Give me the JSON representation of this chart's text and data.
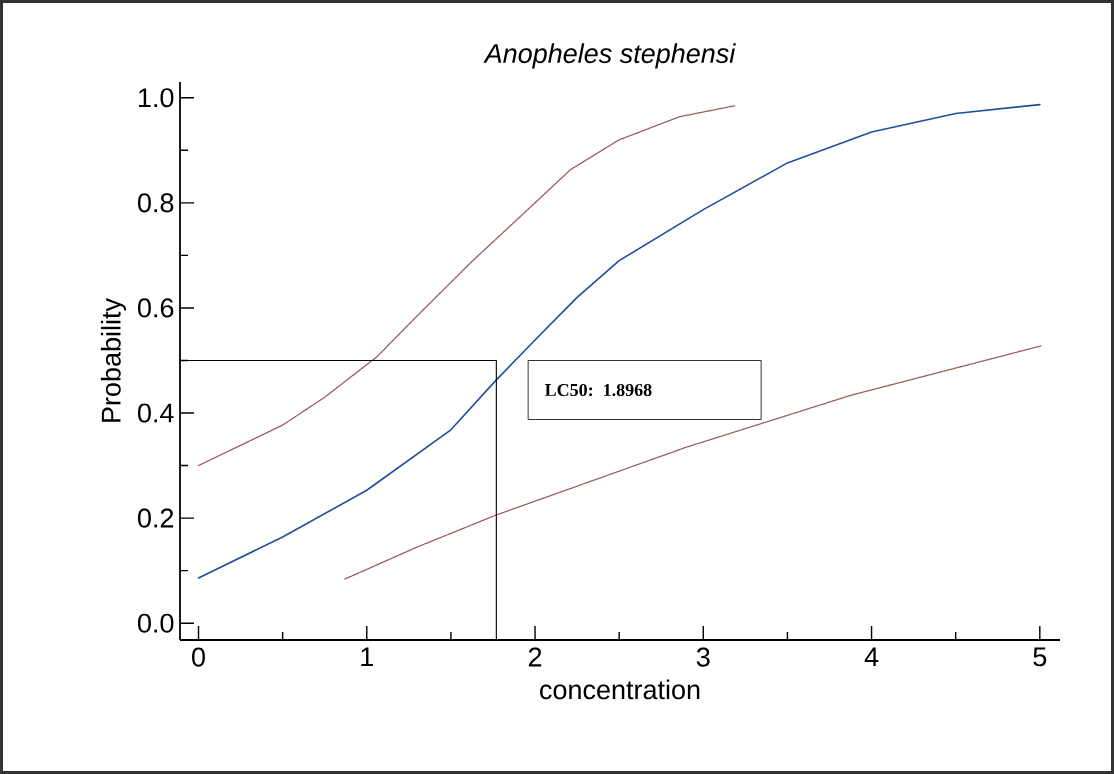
{
  "chart_data": {
    "type": "line",
    "title": "Anopheles stephensi",
    "xlabel": "concentration",
    "ylabel": "Probability",
    "xlim": [
      -0.11,
      5.12
    ],
    "ylim": [
      -0.032,
      1.03
    ],
    "xticks": [
      0,
      1,
      2,
      3,
      4,
      5
    ],
    "yticks": [
      {
        "value": 0,
        "label": "0.0"
      },
      {
        "value": 0.2,
        "label": "0.2"
      },
      {
        "value": 0.4,
        "label": "0.4"
      },
      {
        "value": 0.6,
        "label": "0.6"
      },
      {
        "value": 0.8,
        "label": "0.8"
      },
      {
        "value": 1,
        "label": "1.0"
      }
    ],
    "annotations": [
      "LC50: 1.8968"
    ],
    "series": [
      {
        "color": "#1f4e9a",
        "line_style": "solid",
        "x": [
          0,
          0.5,
          1,
          1.5,
          1.77,
          2,
          2.25,
          2.5,
          3,
          3.5,
          4,
          4.5,
          5
        ],
        "values": [
          0.086,
          0.164,
          0.253,
          0.368,
          0.463,
          0.539,
          0.62,
          0.69,
          0.787,
          0.876,
          0.935,
          0.97,
          0.987
        ]
      },
      {
        "color": "#9b5a5a",
        "line_style": "dotted",
        "x": [
          0,
          0.5,
          0.75,
          1.06,
          1.3,
          1.63,
          2.0,
          2.21,
          2.5,
          2.86,
          3.19
        ],
        "values": [
          0.3,
          0.377,
          0.43,
          0.507,
          0.585,
          0.69,
          0.8,
          0.863,
          0.92,
          0.964,
          0.985
        ]
      },
      {
        "color": "#9b5a5a",
        "line_style": "dotted",
        "x": [
          0.87,
          1.3,
          1.77,
          2.9,
          3.88,
          5.01
        ],
        "values": [
          0.084,
          0.145,
          0.206,
          0.335,
          0.434,
          0.528
        ]
      },
      {
        "color": "#000000",
        "line_style": "solid",
        "x": [
          -0.11,
          1.77,
          1.77
        ],
        "values": [
          0.5,
          0.5,
          -0.032
        ]
      }
    ]
  }
}
